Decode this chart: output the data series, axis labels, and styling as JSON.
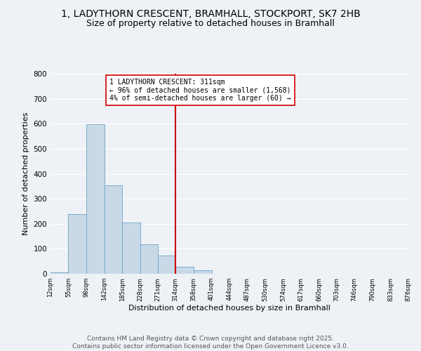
{
  "title": "1, LADYTHORN CRESCENT, BRAMHALL, STOCKPORT, SK7 2HB",
  "subtitle": "Size of property relative to detached houses in Bramhall",
  "xlabel": "Distribution of detached houses by size in Bramhall",
  "ylabel": "Number of detached properties",
  "bin_edges": [
    12,
    55,
    98,
    142,
    185,
    228,
    271,
    314,
    358,
    401,
    444,
    487,
    530,
    574,
    617,
    660,
    703,
    746,
    790,
    833,
    876
  ],
  "bar_heights": [
    5,
    240,
    597,
    355,
    205,
    118,
    72,
    28,
    15,
    0,
    0,
    0,
    0,
    0,
    0,
    0,
    0,
    0,
    0,
    0
  ],
  "bar_facecolor": "#c9d9e8",
  "bar_edgecolor": "#7aaac8",
  "vline_x": 314,
  "vline_color": "#cc0000",
  "annotation_title": "1 LADYTHORN CRESCENT: 311sqm",
  "annotation_line1": "← 96% of detached houses are smaller (1,568)",
  "annotation_line2": "4% of semi-detached houses are larger (60) →",
  "annotation_box_edgecolor": "#cc0000",
  "annotation_box_facecolor": "#ffffff",
  "ylim": [
    0,
    800
  ],
  "xlim": [
    12,
    876
  ],
  "tick_labels": [
    "12sqm",
    "55sqm",
    "98sqm",
    "142sqm",
    "185sqm",
    "228sqm",
    "271sqm",
    "314sqm",
    "358sqm",
    "401sqm",
    "444sqm",
    "487sqm",
    "530sqm",
    "574sqm",
    "617sqm",
    "660sqm",
    "703sqm",
    "746sqm",
    "790sqm",
    "833sqm",
    "876sqm"
  ],
  "background_color": "#eef2f7",
  "grid_color": "#ffffff",
  "title_fontsize": 10,
  "subtitle_fontsize": 9,
  "yticks": [
    0,
    100,
    200,
    300,
    400,
    500,
    600,
    700,
    800
  ],
  "footer_line1": "Contains HM Land Registry data © Crown copyright and database right 2025.",
  "footer_line2": "Contains public sector information licensed under the Open Government Licence v3.0.",
  "footer_fontsize": 6.5
}
